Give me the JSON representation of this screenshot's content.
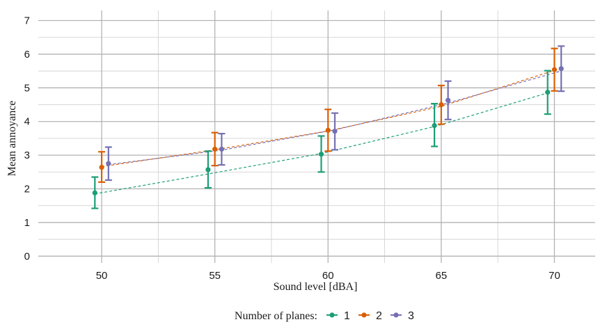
{
  "chart_data": {
    "type": "line",
    "xlabel": "Sound level [dBA]",
    "ylabel": "Mean annoyance",
    "xlim": [
      47.2,
      71.8
    ],
    "ylim": [
      -0.2,
      7.3
    ],
    "x_ticks": [
      50,
      55,
      60,
      65,
      70
    ],
    "y_ticks": [
      0,
      1,
      2,
      3,
      4,
      5,
      6,
      7
    ],
    "grid": true,
    "error_bars": true,
    "fit_lines": "dashed",
    "legend": {
      "title": "Number of planes:",
      "position": "bottom"
    },
    "x": [
      50,
      55,
      60,
      65,
      70
    ],
    "series": [
      {
        "name": "1",
        "color": "#1b9e77",
        "offset": -0.3,
        "values": [
          1.88,
          2.57,
          3.03,
          3.88,
          4.87
        ],
        "lower": [
          1.42,
          2.03,
          2.5,
          3.26,
          4.22
        ],
        "upper": [
          2.35,
          3.12,
          3.57,
          4.53,
          5.51
        ],
        "fit": [
          1.85,
          2.44,
          3.05,
          3.85,
          4.85
        ]
      },
      {
        "name": "2",
        "color": "#d95f02",
        "offset": 0,
        "values": [
          2.64,
          3.18,
          3.74,
          4.5,
          5.54
        ],
        "lower": [
          2.2,
          2.69,
          3.12,
          3.92,
          4.91
        ],
        "upper": [
          3.1,
          3.67,
          4.36,
          5.07,
          6.17
        ],
        "fit": [
          2.66,
          3.16,
          3.72,
          4.45,
          5.52
        ]
      },
      {
        "name": "3",
        "color": "#7570b3",
        "offset": 0.3,
        "values": [
          2.75,
          3.18,
          3.71,
          4.63,
          5.57
        ],
        "lower": [
          2.26,
          2.71,
          3.16,
          4.06,
          4.9
        ],
        "upper": [
          3.24,
          3.64,
          4.25,
          5.2,
          6.24
        ],
        "fit": [
          2.72,
          3.15,
          3.75,
          4.55,
          5.5
        ]
      }
    ]
  }
}
